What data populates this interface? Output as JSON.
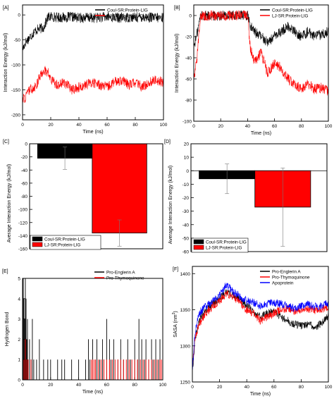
{
  "chart_data": [
    {
      "panel_label": "[A]",
      "type": "line",
      "xlabel": "Time (ns)",
      "ylabel": "Interaction Energy (kJ/mol)",
      "xlim": [
        0,
        100
      ],
      "ylim": [
        -210,
        20
      ],
      "xticks": [
        0,
        20,
        40,
        60,
        80,
        100
      ],
      "yticks": [
        0,
        -50,
        -100,
        -150,
        -200
      ],
      "legend": "top-right",
      "series": [
        {
          "name": "Coul-SR:Protein-LIG",
          "color": "#000000",
          "x": [
            0,
            2,
            5,
            8,
            10,
            12,
            15,
            18,
            20,
            25,
            30,
            35,
            40,
            45,
            50,
            55,
            60,
            65,
            70,
            75,
            80,
            85,
            90,
            95,
            100
          ],
          "y": [
            -70,
            -55,
            -45,
            -35,
            -30,
            -28,
            -25,
            -5,
            -3,
            -5,
            -5,
            -4,
            -6,
            -5,
            -6,
            -5,
            -4,
            -5,
            -6,
            -5,
            -5,
            -4,
            -5,
            -6,
            -5
          ]
        },
        {
          "name": "LJ-SR:Protein-LIG",
          "color": "#ff0000",
          "x": [
            0,
            2,
            5,
            8,
            10,
            12,
            15,
            18,
            20,
            25,
            30,
            35,
            40,
            45,
            50,
            55,
            60,
            65,
            70,
            75,
            80,
            85,
            90,
            95,
            100
          ],
          "y": [
            -170,
            -165,
            -150,
            -145,
            -140,
            -125,
            -110,
            -115,
            -130,
            -140,
            -135,
            -150,
            -145,
            -140,
            -135,
            -140,
            -145,
            -135,
            -130,
            -140,
            -135,
            -145,
            -135,
            -130,
            -135
          ]
        }
      ]
    },
    {
      "panel_label": "[B]",
      "type": "line",
      "xlabel": "Time (ns)",
      "ylabel": "Interaction Energy (kJ/mol)",
      "xlim": [
        0,
        100
      ],
      "ylim": [
        -100,
        10
      ],
      "xticks": [
        0,
        20,
        40,
        60,
        80,
        100
      ],
      "yticks": [
        0,
        -20,
        -40,
        -60,
        -80,
        -100
      ],
      "legend": "top-right",
      "series": [
        {
          "name": "Coul-SR:Protein-LIG",
          "color": "#000000",
          "x": [
            0,
            2,
            5,
            10,
            20,
            30,
            40,
            42,
            45,
            50,
            55,
            60,
            65,
            70,
            75,
            80,
            85,
            90,
            95,
            100
          ],
          "y": [
            -30,
            -20,
            0,
            0,
            0,
            0,
            0,
            -10,
            -15,
            -20,
            -25,
            -20,
            -15,
            -10,
            -15,
            -20,
            -15,
            -20,
            -18,
            -15
          ]
        },
        {
          "name": "LJ-SR:Protein-LIG",
          "color": "#ff0000",
          "x": [
            0,
            2,
            5,
            10,
            20,
            30,
            40,
            42,
            45,
            50,
            55,
            60,
            65,
            70,
            75,
            80,
            85,
            90,
            95,
            100
          ],
          "y": [
            -60,
            -45,
            0,
            0,
            0,
            0,
            0,
            -30,
            -45,
            -35,
            -55,
            -45,
            -50,
            -60,
            -65,
            -70,
            -65,
            -70,
            -68,
            -72
          ]
        }
      ]
    },
    {
      "panel_label": "[C]",
      "type": "bar",
      "ylabel": "Average Interaction Energy (kJ/mol)",
      "ylim": [
        -160,
        0
      ],
      "yticks": [
        0,
        -20,
        -40,
        -60,
        -80,
        -100,
        -120,
        -140,
        -160
      ],
      "legend": "bottom-left",
      "series": [
        {
          "name": "Coul-SR:Protein-LIG",
          "color": "#000000",
          "value": -22,
          "error": 17
        },
        {
          "name": "LJ-SR:Protein-LIG",
          "color": "#ff0000",
          "value": -136,
          "error": 20
        }
      ]
    },
    {
      "panel_label": "[D]",
      "type": "bar",
      "ylabel": "Average Interaction Energy (kJ/mol)",
      "ylim": [
        -60,
        20
      ],
      "yticks": [
        20,
        10,
        0,
        -10,
        -20,
        -30,
        -40,
        -50,
        -60
      ],
      "legend": "bottom-left",
      "series": [
        {
          "name": "Coul-SR:Protein-LIG",
          "color": "#000000",
          "value": -6,
          "error": 11
        },
        {
          "name": "LJ-SR:Protein-LIG",
          "color": "#ff0000",
          "value": -27,
          "error": 29
        }
      ]
    },
    {
      "panel_label": "[E]",
      "type": "bar",
      "xlabel": "Time (ns)",
      "ylabel": "Hydrogen Bond",
      "xlim": [
        0,
        100
      ],
      "ylim": [
        0,
        5
      ],
      "xticks": [
        0,
        20,
        40,
        60,
        80,
        100
      ],
      "yticks": [
        0,
        1,
        2,
        3,
        4,
        5
      ],
      "legend": "top-right",
      "series": [
        {
          "name": "Pro-Englerin A",
          "color": "#000000",
          "x": [
            0.5,
            1,
            1.5,
            2,
            2.5,
            3,
            3.5,
            4,
            5,
            6,
            7,
            8,
            10,
            12,
            15,
            18,
            20,
            25,
            28,
            30,
            35,
            40,
            45,
            47,
            48,
            50,
            52,
            53,
            55,
            57,
            58,
            60,
            62,
            63,
            65,
            68,
            70,
            72,
            75,
            77,
            80,
            82,
            83,
            85,
            87,
            88,
            90,
            92,
            93,
            95,
            97,
            98
          ],
          "y": [
            5,
            4,
            3,
            5,
            4,
            2,
            3,
            1,
            2,
            1,
            3,
            1,
            1,
            2,
            1,
            1,
            1,
            1,
            1,
            1,
            1,
            1,
            1,
            2,
            1,
            2,
            1,
            2,
            1,
            2,
            1,
            3,
            2,
            1,
            2,
            1,
            2,
            1,
            2,
            1,
            2,
            1,
            3,
            2,
            1,
            2,
            1,
            2,
            1,
            2,
            1,
            2
          ]
        },
        {
          "name": "Pro-Thymoquinone",
          "color": "#ff0000",
          "x": [
            1,
            2,
            3,
            4,
            6,
            49,
            50,
            51,
            52,
            54,
            56,
            58,
            60,
            62,
            64,
            66,
            68,
            70,
            72,
            74,
            76,
            78,
            80,
            82,
            84,
            86,
            88,
            90,
            92,
            94,
            96,
            98,
            99
          ],
          "y": [
            1,
            2,
            1,
            1,
            1,
            1,
            1,
            1,
            1,
            1,
            1,
            1,
            1,
            1,
            1,
            1,
            1,
            1,
            1,
            1,
            1,
            1,
            1,
            1,
            1,
            1,
            1,
            1,
            1,
            1,
            1,
            1,
            1
          ]
        }
      ]
    },
    {
      "panel_label": "[F]",
      "type": "line",
      "xlabel": "Time (ns)",
      "ylabel": "SASA (nm",
      "ylabel_sup": "2",
      "ylabel_end": ")",
      "xlim": [
        0,
        100
      ],
      "ylim": [
        1250,
        1410
      ],
      "xticks": [
        0,
        20,
        40,
        60,
        80,
        100
      ],
      "yticks": [
        1250,
        1300,
        1350,
        1400
      ],
      "legend": "top-right",
      "series": [
        {
          "name": "Pro-Englerin A",
          "color": "#000000",
          "x": [
            0,
            2,
            5,
            8,
            10,
            15,
            20,
            25,
            30,
            35,
            40,
            45,
            50,
            55,
            60,
            65,
            70,
            75,
            80,
            85,
            90,
            95,
            100
          ],
          "y": [
            1265,
            1310,
            1335,
            1345,
            1350,
            1358,
            1365,
            1375,
            1370,
            1365,
            1355,
            1348,
            1340,
            1345,
            1348,
            1340,
            1335,
            1330,
            1328,
            1330,
            1325,
            1332,
            1340
          ]
        },
        {
          "name": "Pro-Thymoquinone",
          "color": "#ff0000",
          "x": [
            0,
            2,
            5,
            8,
            10,
            15,
            20,
            25,
            30,
            35,
            40,
            45,
            50,
            55,
            60,
            65,
            70,
            75,
            80,
            85,
            90,
            95,
            100
          ],
          "y": [
            1270,
            1312,
            1330,
            1340,
            1345,
            1355,
            1362,
            1372,
            1368,
            1360,
            1350,
            1345,
            1335,
            1340,
            1345,
            1350,
            1352,
            1348,
            1350,
            1352,
            1348,
            1350,
            1355
          ]
        },
        {
          "name": "Apoprotein",
          "color": "#0000ff",
          "x": [
            0,
            2,
            5,
            8,
            10,
            15,
            20,
            25,
            30,
            35,
            40,
            45,
            50,
            55,
            60,
            65,
            70,
            75,
            80,
            85,
            90,
            95,
            100
          ],
          "y": [
            1268,
            1320,
            1345,
            1352,
            1355,
            1362,
            1370,
            1385,
            1375,
            1368,
            1362,
            1360,
            1355,
            1358,
            1360,
            1358,
            1355,
            1352,
            1355,
            1358,
            1354,
            1356,
            1358
          ]
        }
      ]
    }
  ]
}
